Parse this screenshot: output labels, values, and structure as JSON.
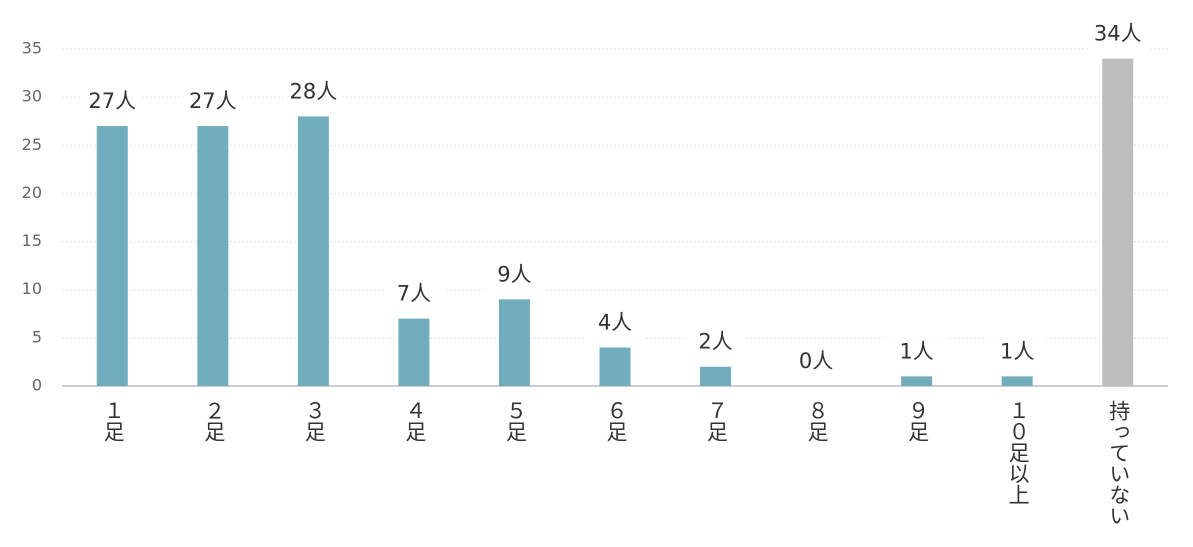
{
  "chart_data": {
    "type": "bar",
    "categories": [
      "１足",
      "２足",
      "３足",
      "４足",
      "５足",
      "６足",
      "７足",
      "８足",
      "９足",
      "１０足以上",
      "持っていない"
    ],
    "values": [
      27,
      27,
      28,
      7,
      9,
      4,
      2,
      0,
      1,
      1,
      34
    ],
    "value_labels": [
      "27人",
      "27人",
      "28人",
      "7人",
      "9人",
      "4人",
      "2人",
      "0人",
      "1人",
      "1人",
      "34人"
    ],
    "colors": [
      "#72adbd",
      "#72adbd",
      "#72adbd",
      "#72adbd",
      "#72adbd",
      "#72adbd",
      "#72adbd",
      "#72adbd",
      "#72adbd",
      "#72adbd",
      "#bdbdbd"
    ],
    "ylim": [
      0,
      35
    ],
    "yticks": [
      0,
      5,
      10,
      15,
      20,
      25,
      30,
      35
    ],
    "grid": true
  }
}
